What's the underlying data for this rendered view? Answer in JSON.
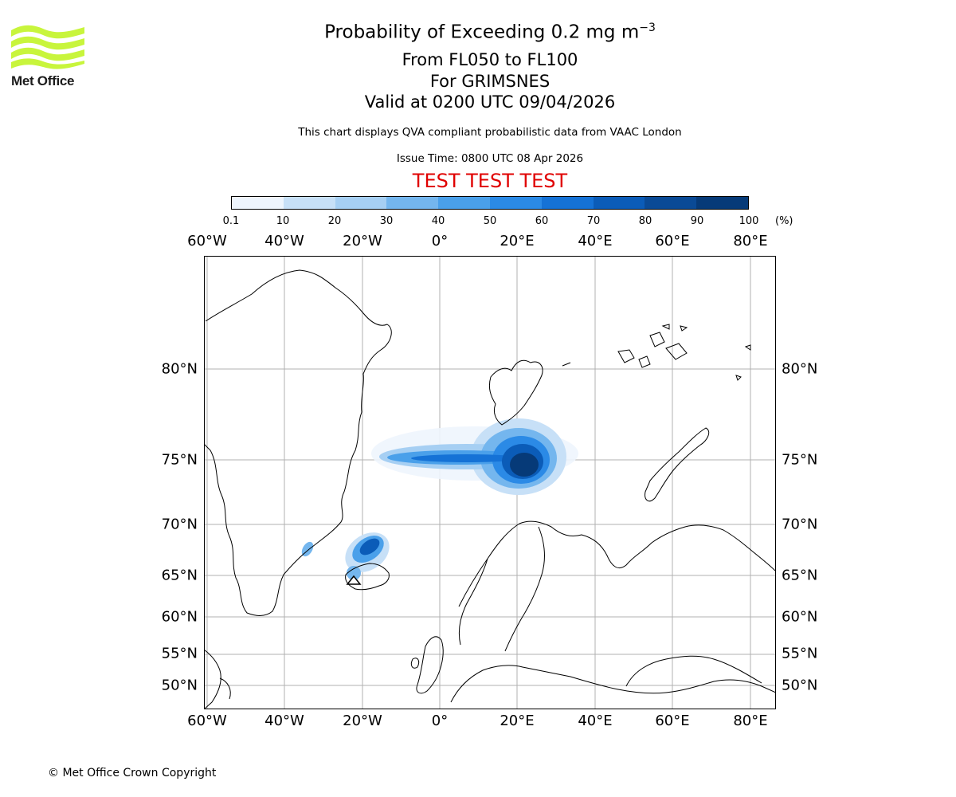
{
  "branding": {
    "logo_text": "Met Office",
    "logo_color": "#c8f53c"
  },
  "header": {
    "title_main": "Probability of Exceeding 0.2 mg m",
    "title_sup": "−3",
    "flight_levels": "From FL050 to FL100",
    "location": "For GRIMSNES",
    "valid_time": "Valid at 0200 UTC 09/04/2026",
    "description": "This chart displays QVA compliant probabilistic data from VAAC London",
    "issue_time": "Issue Time: 0800 UTC 08 Apr 2026",
    "test_banner": "TEST TEST TEST",
    "test_color": "#e00000"
  },
  "colorbar": {
    "labels": [
      "0.1",
      "10",
      "20",
      "30",
      "40",
      "50",
      "60",
      "70",
      "80",
      "90",
      "100"
    ],
    "unit": "(%)",
    "colors": [
      "#eef5fd",
      "#c7e0f7",
      "#a6cff3",
      "#74b6ee",
      "#4aa0ea",
      "#2b8ae6",
      "#1572d6",
      "#0b5cb8",
      "#0a4a96",
      "#063a78",
      "#032a58"
    ]
  },
  "map": {
    "longitude_ticks": [
      "60°W",
      "40°W",
      "20°W",
      "0°",
      "20°E",
      "40°E",
      "60°E",
      "80°E"
    ],
    "latitude_ticks": [
      "80°N",
      "75°N",
      "70°N",
      "65°N",
      "60°N",
      "55°N",
      "50°N"
    ],
    "source_marker": "triangle-marker"
  },
  "footer": {
    "copyright": "© Met Office Crown Copyright"
  }
}
